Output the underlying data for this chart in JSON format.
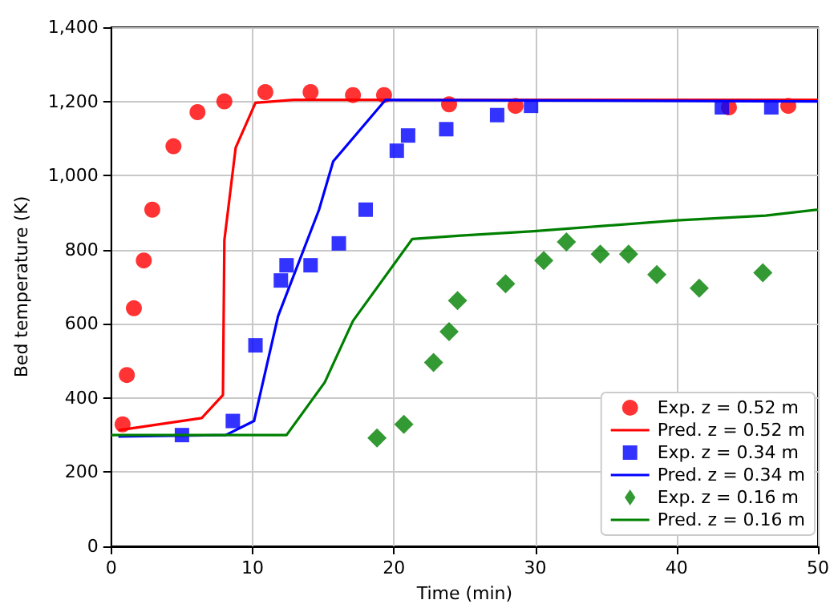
{
  "chart_data": {
    "type": "scatter",
    "xlabel": "Time (min)",
    "ylabel": "Bed temperature (K)",
    "xlim": [
      0,
      50
    ],
    "xticks": [
      0,
      10,
      20,
      30,
      40,
      50
    ],
    "ylim": [
      0,
      1400
    ],
    "yticks": [
      {
        "value": 0,
        "label": "0"
      },
      {
        "value": 200,
        "label": "200"
      },
      {
        "value": 400,
        "label": "400"
      },
      {
        "value": 600,
        "label": "600"
      },
      {
        "value": 800,
        "label": "800"
      },
      {
        "value": 1000,
        "label": "1,000"
      },
      {
        "value": 1200,
        "label": "1,200"
      },
      {
        "value": 1400,
        "label": "1,400"
      }
    ],
    "grid": true,
    "legend": "bottom right",
    "series": [
      {
        "name": "Exp. z = 0.52 m",
        "marker": "circle",
        "color": "#ff0000",
        "x": [
          0.8,
          1.1,
          1.6,
          2.3,
          2.9,
          4.4,
          6.1,
          8.0,
          10.9,
          14.1,
          17.1,
          19.3,
          23.9,
          28.6,
          43.7,
          47.9
        ],
        "values": [
          329,
          462,
          642,
          771,
          908,
          1079,
          1171,
          1200,
          1225,
          1225,
          1217,
          1217,
          1192,
          1188,
          1184,
          1188
        ]
      },
      {
        "name": "Pred. z = 0.52 m",
        "type": "line",
        "marker": "none",
        "color": "#ff0000",
        "x": [
          0.5,
          6.4,
          7.9,
          8.0,
          8.8,
          10.2,
          12.9,
          50
        ],
        "values": [
          313,
          346,
          408,
          825,
          1075,
          1196,
          1204,
          1204
        ]
      },
      {
        "name": "Exp. z = 0.34 m",
        "marker": "square",
        "color": "#0000ff",
        "x": [
          5.0,
          8.6,
          10.2,
          12.0,
          12.4,
          14.1,
          16.1,
          18.0,
          20.2,
          21.0,
          23.7,
          27.3,
          29.7,
          43.2,
          46.7
        ],
        "values": [
          300,
          338,
          542,
          717,
          758,
          758,
          817,
          908,
          1067,
          1108,
          1125,
          1163,
          1188,
          1184,
          1184
        ]
      },
      {
        "name": "Pred. z = 0.34 m",
        "type": "line",
        "marker": "none",
        "color": "#0000ff",
        "x": [
          0.5,
          8.1,
          10.1,
          11.8,
          14.7,
          15.7,
          19.4,
          50
        ],
        "values": [
          296,
          300,
          338,
          621,
          908,
          1038,
          1204,
          1200
        ]
      },
      {
        "name": "Exp. z = 0.16 m",
        "marker": "diamond",
        "color": "#008000",
        "x": [
          18.8,
          20.7,
          22.8,
          23.9,
          24.5,
          27.9,
          30.6,
          32.2,
          34.6,
          36.6,
          38.6,
          41.6,
          46.1
        ],
        "values": [
          292,
          329,
          496,
          579,
          663,
          708,
          771,
          821,
          788,
          788,
          733,
          696,
          738
        ]
      },
      {
        "name": "Pred. z = 0.16 m",
        "type": "line",
        "marker": "none",
        "color": "#008000",
        "x": [
          0,
          12.4,
          15.1,
          17.1,
          21.3,
          24.7,
          29.9,
          40.0,
          46.3,
          50
        ],
        "values": [
          300,
          300,
          442,
          608,
          829,
          838,
          850,
          879,
          892,
          908
        ]
      }
    ]
  }
}
